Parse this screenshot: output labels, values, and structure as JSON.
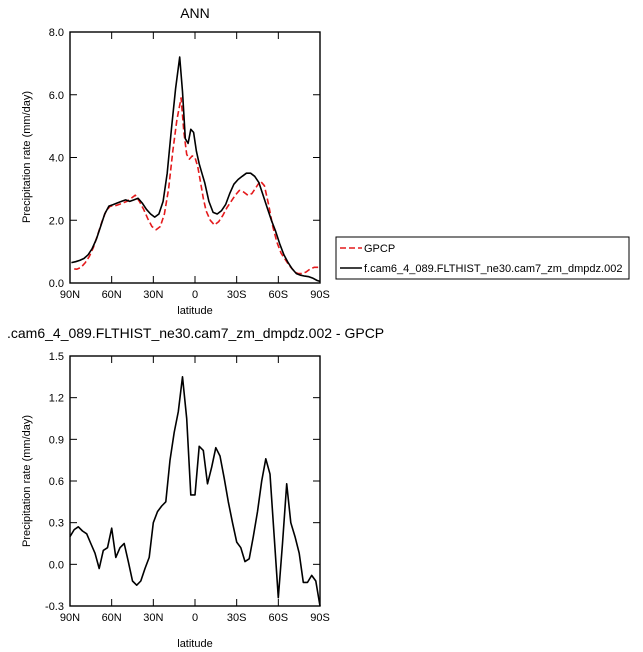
{
  "chart_data": [
    {
      "type": "line",
      "title": "ANN",
      "xlabel": "latitude",
      "ylabel": "Precipitation rate (mm/day)",
      "xlim": [
        90,
        -90
      ],
      "ylim": [
        0,
        8
      ],
      "x_ticks": [
        90,
        60,
        30,
        0,
        -30,
        -60,
        -90
      ],
      "x_tick_labels": [
        "90N",
        "60N",
        "30N",
        "0",
        "30S",
        "60S",
        "90S"
      ],
      "y_ticks": [
        0,
        2,
        4,
        6,
        8
      ],
      "y_tick_labels": [
        "0.0",
        "2.0",
        "4.0",
        "6.0",
        "8.0"
      ],
      "grid": false,
      "legend_position": "outside-right",
      "series": [
        {
          "name": "GPCP",
          "color": "#e41a1c",
          "dash": "dashed",
          "x": [
            87,
            85,
            82,
            79,
            76,
            73,
            70,
            67,
            64,
            61,
            58,
            55,
            52,
            49,
            46,
            43,
            40,
            37,
            34,
            31,
            28,
            25,
            22,
            19,
            16,
            13,
            10,
            8,
            6,
            4,
            2,
            0,
            -2,
            -4,
            -6,
            -8,
            -11,
            -14,
            -17,
            -20,
            -23,
            -26,
            -29,
            -32,
            -35,
            -38,
            -41,
            -44,
            -47,
            -50,
            -53,
            -56,
            -59,
            -62,
            -65,
            -68,
            -71,
            -74,
            -77,
            -80,
            -83,
            -86,
            -89
          ],
          "y": [
            0.45,
            0.44,
            0.5,
            0.65,
            0.85,
            1.15,
            1.55,
            1.95,
            2.3,
            2.45,
            2.45,
            2.5,
            2.55,
            2.6,
            2.7,
            2.8,
            2.6,
            2.35,
            2.05,
            1.8,
            1.7,
            1.8,
            2.2,
            3.0,
            4.2,
            5.2,
            5.9,
            4.8,
            4.1,
            3.95,
            4.05,
            4.0,
            3.7,
            3.2,
            2.7,
            2.3,
            2.0,
            1.85,
            1.95,
            2.15,
            2.4,
            2.6,
            2.8,
            2.95,
            2.9,
            2.8,
            2.85,
            3.05,
            3.25,
            3.1,
            2.5,
            1.8,
            1.3,
            0.95,
            0.75,
            0.55,
            0.4,
            0.3,
            0.3,
            0.35,
            0.45,
            0.5,
            0.5
          ]
        },
        {
          "name": "f.cam6_4_089.FLTHIST_ne30.cam7_zm_dmpdz.002",
          "color": "#000000",
          "dash": "solid",
          "x": [
            89,
            86,
            83,
            80,
            77,
            74,
            71,
            68,
            65,
            62,
            59,
            56,
            53,
            50,
            47,
            44,
            41,
            38,
            35,
            32,
            29,
            26,
            23,
            20,
            17,
            14,
            11,
            9,
            7,
            5,
            3,
            1,
            -1,
            -3,
            -5,
            -7,
            -10,
            -13,
            -16,
            -19,
            -22,
            -25,
            -28,
            -31,
            -34,
            -37,
            -40,
            -43,
            -46,
            -49,
            -52,
            -55,
            -58,
            -61,
            -64,
            -67,
            -70,
            -73,
            -76,
            -79,
            -82,
            -85,
            -88,
            -90
          ],
          "y": [
            0.65,
            0.68,
            0.72,
            0.78,
            0.9,
            1.1,
            1.4,
            1.8,
            2.2,
            2.45,
            2.5,
            2.55,
            2.6,
            2.65,
            2.6,
            2.65,
            2.7,
            2.55,
            2.35,
            2.2,
            2.1,
            2.2,
            2.6,
            3.5,
            4.9,
            6.2,
            7.2,
            6.1,
            4.6,
            4.45,
            4.9,
            4.8,
            4.2,
            3.8,
            3.5,
            3.2,
            2.6,
            2.25,
            2.2,
            2.3,
            2.5,
            2.85,
            3.15,
            3.3,
            3.4,
            3.5,
            3.5,
            3.4,
            3.2,
            2.8,
            2.4,
            2.0,
            1.65,
            1.25,
            0.9,
            0.65,
            0.45,
            0.3,
            0.25,
            0.22,
            0.2,
            0.15,
            0.08,
            0.05
          ]
        }
      ]
    },
    {
      "type": "line",
      "title": ".cam6_4_089.FLTHIST_ne30.cam7_zm_dmpdz.002 - GPCP",
      "xlabel": "latitude",
      "ylabel": "Precipitation rate (mm/day)",
      "xlim": [
        90,
        -90
      ],
      "ylim": [
        -0.3,
        1.5
      ],
      "x_ticks": [
        90,
        60,
        30,
        0,
        -30,
        -60,
        -90
      ],
      "x_tick_labels": [
        "90N",
        "60N",
        "30N",
        "0",
        "30S",
        "60S",
        "90S"
      ],
      "y_ticks": [
        -0.3,
        0,
        0.3,
        0.6,
        0.9,
        1.2,
        1.5
      ],
      "y_tick_labels": [
        "-0.3",
        "0.0",
        "0.3",
        "0.6",
        "0.9",
        "1.2",
        "1.5"
      ],
      "grid": false,
      "series": [
        {
          "color": "#000000",
          "dash": "solid",
          "x": [
            90,
            87,
            84,
            81,
            78,
            75,
            72,
            69,
            66,
            63,
            60,
            57,
            54,
            51,
            48,
            45,
            42,
            39,
            36,
            33,
            30,
            27,
            24,
            21,
            18,
            15,
            12,
            9,
            6,
            3,
            0,
            -3,
            -6,
            -9,
            -12,
            -15,
            -18,
            -21,
            -24,
            -27,
            -30,
            -33,
            -36,
            -39,
            -42,
            -45,
            -48,
            -51,
            -54,
            -57,
            -60,
            -63,
            -66,
            -69,
            -72,
            -75,
            -78,
            -81,
            -84,
            -87,
            -90
          ],
          "y": [
            0.2,
            0.25,
            0.27,
            0.24,
            0.22,
            0.15,
            0.08,
            -0.03,
            0.1,
            0.12,
            0.26,
            0.05,
            0.12,
            0.15,
            0.02,
            -0.12,
            -0.15,
            -0.12,
            -0.03,
            0.05,
            0.3,
            0.38,
            0.42,
            0.45,
            0.75,
            0.95,
            1.1,
            1.35,
            1.05,
            0.5,
            0.5,
            0.85,
            0.82,
            0.58,
            0.7,
            0.84,
            0.78,
            0.62,
            0.45,
            0.3,
            0.16,
            0.12,
            0.02,
            0.04,
            0.2,
            0.38,
            0.6,
            0.76,
            0.65,
            0.2,
            -0.24,
            0.15,
            0.58,
            0.3,
            0.2,
            0.08,
            -0.13,
            -0.13,
            -0.08,
            -0.12,
            -0.3
          ]
        }
      ]
    }
  ],
  "legend": {
    "entries": [
      "GPCP",
      "f.cam6_4_089.FLTHIST_ne30.cam7_zm_dmpdz.002"
    ]
  }
}
